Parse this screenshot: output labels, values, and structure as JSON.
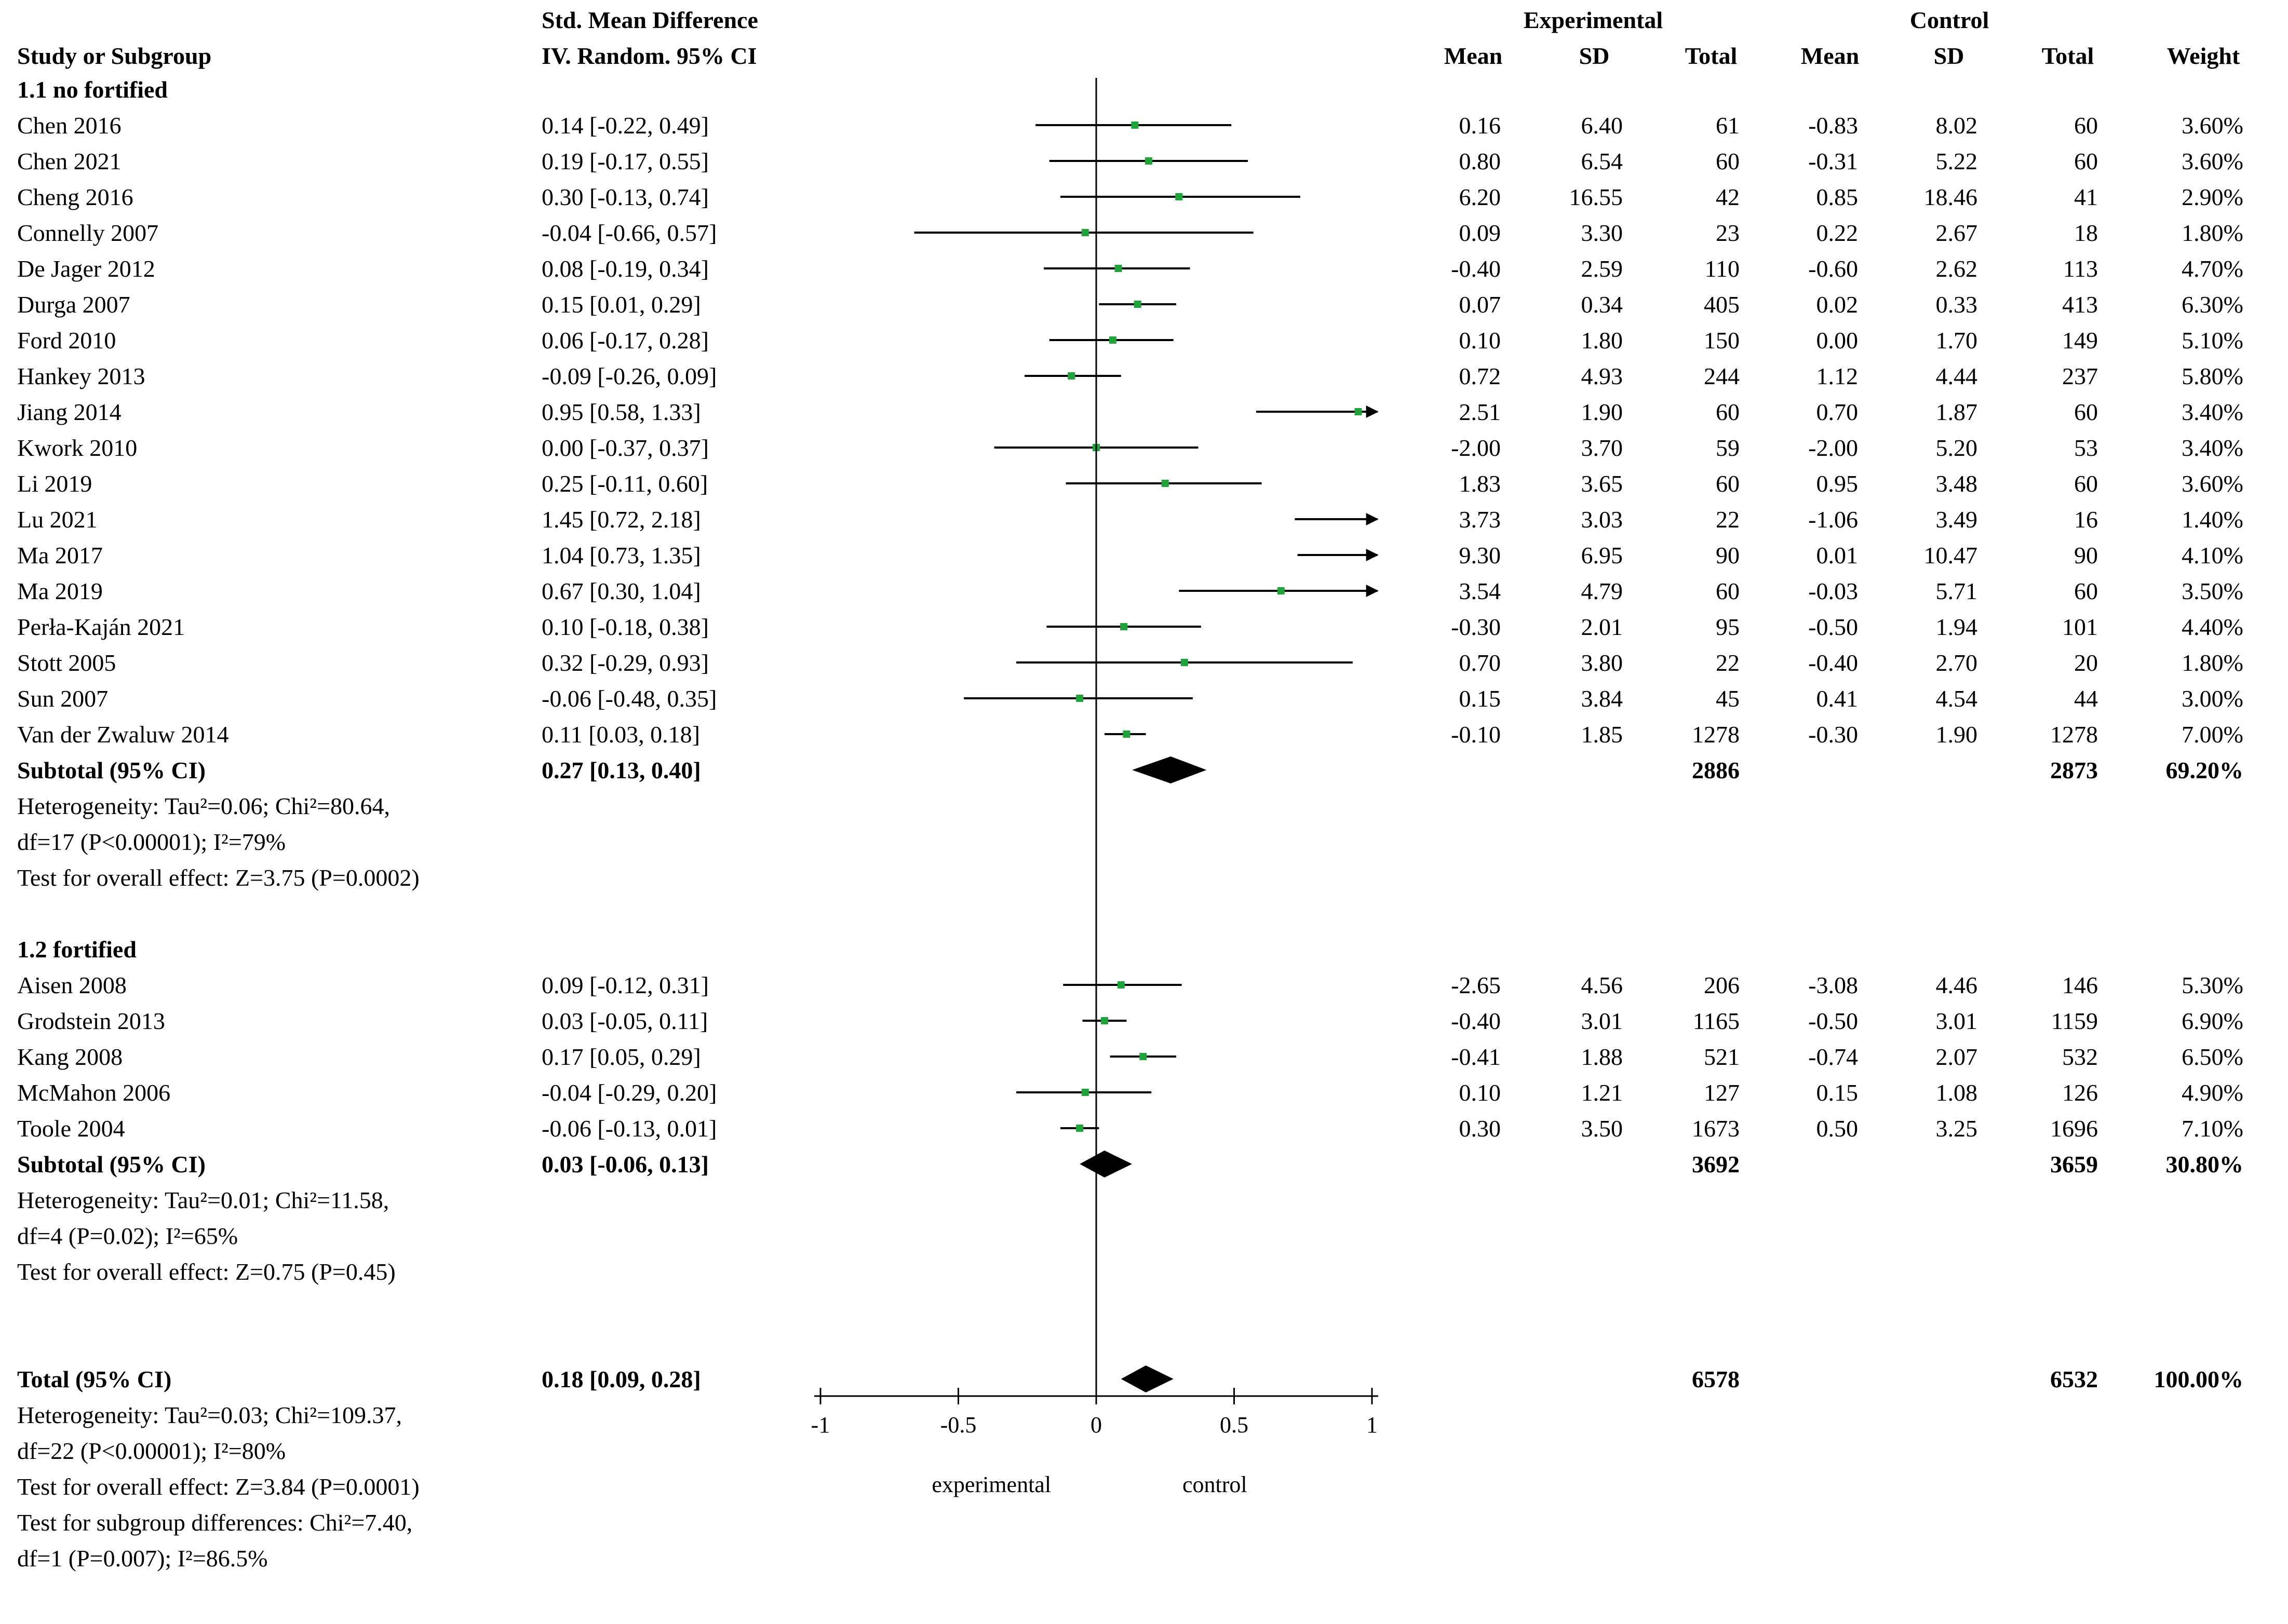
{
  "header": {
    "col_smd_line1": "Std. Mean Difference",
    "col_study": "Study or Subgroup",
    "col_smd_line2": "IV. Random. 95% CI",
    "experimental": "Experimental",
    "control": "Control",
    "mean": "Mean",
    "sd": "SD",
    "total": "Total",
    "weight": "Weight"
  },
  "groups": [
    {
      "title": "1.1 no fortified",
      "studies": [
        {
          "name": "Chen 2016",
          "ci": "0.14 [-0.22, 0.49]",
          "em": "0.16",
          "esd": "6.40",
          "et": "61",
          "cm": "-0.83",
          "csd": "8.02",
          "ct": "60",
          "w": "3.60%"
        },
        {
          "name": "Chen 2021",
          "ci": "0.19 [-0.17, 0.55]",
          "em": "0.80",
          "esd": "6.54",
          "et": "60",
          "cm": "-0.31",
          "csd": "5.22",
          "ct": "60",
          "w": "3.60%"
        },
        {
          "name": "Cheng 2016",
          "ci": "0.30 [-0.13, 0.74]",
          "em": "6.20",
          "esd": "16.55",
          "et": "42",
          "cm": "0.85",
          "csd": "18.46",
          "ct": "41",
          "w": "2.90%"
        },
        {
          "name": "Connelly 2007",
          "ci": "-0.04 [-0.66, 0.57]",
          "em": "0.09",
          "esd": "3.30",
          "et": "23",
          "cm": "0.22",
          "csd": "2.67",
          "ct": "18",
          "w": "1.80%"
        },
        {
          "name": "De Jager 2012",
          "ci": "0.08 [-0.19, 0.34]",
          "em": "-0.40",
          "esd": "2.59",
          "et": "110",
          "cm": "-0.60",
          "csd": "2.62",
          "ct": "113",
          "w": "4.70%"
        },
        {
          "name": "Durga 2007",
          "ci": "0.15 [0.01, 0.29]",
          "em": "0.07",
          "esd": "0.34",
          "et": "405",
          "cm": "0.02",
          "csd": "0.33",
          "ct": "413",
          "w": "6.30%"
        },
        {
          "name": "Ford 2010",
          "ci": "0.06 [-0.17, 0.28]",
          "em": "0.10",
          "esd": "1.80",
          "et": "150",
          "cm": "0.00",
          "csd": "1.70",
          "ct": "149",
          "w": "5.10%"
        },
        {
          "name": "Hankey 2013",
          "ci": "-0.09 [-0.26, 0.09]",
          "em": "0.72",
          "esd": "4.93",
          "et": "244",
          "cm": "1.12",
          "csd": "4.44",
          "ct": "237",
          "w": "5.80%"
        },
        {
          "name": "Jiang 2014",
          "ci": "0.95 [0.58, 1.33]",
          "em": "2.51",
          "esd": "1.90",
          "et": "60",
          "cm": "0.70",
          "csd": "1.87",
          "ct": "60",
          "w": "3.40%"
        },
        {
          "name": "Kwork 2010",
          "ci": "0.00 [-0.37, 0.37]",
          "em": "-2.00",
          "esd": "3.70",
          "et": "59",
          "cm": "-2.00",
          "csd": "5.20",
          "ct": "53",
          "w": "3.40%"
        },
        {
          "name": "Li 2019",
          "ci": "0.25 [-0.11, 0.60]",
          "em": "1.83",
          "esd": "3.65",
          "et": "60",
          "cm": "0.95",
          "csd": "3.48",
          "ct": "60",
          "w": "3.60%"
        },
        {
          "name": "Lu 2021",
          "ci": "1.45 [0.72, 2.18]",
          "em": "3.73",
          "esd": "3.03",
          "et": "22",
          "cm": "-1.06",
          "csd": "3.49",
          "ct": "16",
          "w": "1.40%"
        },
        {
          "name": "Ma 2017",
          "ci": "1.04 [0.73, 1.35]",
          "em": "9.30",
          "esd": "6.95",
          "et": "90",
          "cm": "0.01",
          "csd": "10.47",
          "ct": "90",
          "w": "4.10%"
        },
        {
          "name": "Ma 2019",
          "ci": "0.67 [0.30, 1.04]",
          "em": "3.54",
          "esd": "4.79",
          "et": "60",
          "cm": "-0.03",
          "csd": "5.71",
          "ct": "60",
          "w": "3.50%"
        },
        {
          "name": "Perła-Kaján 2021",
          "ci": "0.10 [-0.18, 0.38]",
          "em": "-0.30",
          "esd": "2.01",
          "et": "95",
          "cm": "-0.50",
          "csd": "1.94",
          "ct": "101",
          "w": "4.40%"
        },
        {
          "name": "Stott 2005",
          "ci": "0.32 [-0.29, 0.93]",
          "em": "0.70",
          "esd": "3.80",
          "et": "22",
          "cm": "-0.40",
          "csd": "2.70",
          "ct": "20",
          "w": "1.80%"
        },
        {
          "name": "Sun 2007",
          "ci": "-0.06 [-0.48, 0.35]",
          "em": "0.15",
          "esd": "3.84",
          "et": "45",
          "cm": "0.41",
          "csd": "4.54",
          "ct": "44",
          "w": "3.00%"
        },
        {
          "name": "Van der Zwaluw 2014",
          "ci": "0.11 [0.03, 0.18]",
          "em": "-0.10",
          "esd": "1.85",
          "et": "1278",
          "cm": "-0.30",
          "csd": "1.90",
          "ct": "1278",
          "w": "7.00%"
        }
      ],
      "subtotal": {
        "label": "Subtotal (95% CI)",
        "ci": "0.27 [0.13, 0.40]",
        "et": "2886",
        "ct": "2873",
        "w": "69.20%"
      },
      "heterogeneity_1": "Heterogeneity: Tau²=0.06; Chi²=80.64,",
      "heterogeneity_2": "df=17 (P<0.00001); I²=79%",
      "overall": "Test for overall effect: Z=3.75 (P=0.0002)"
    },
    {
      "title": "1.2 fortified",
      "studies": [
        {
          "name": "Aisen 2008",
          "ci": "0.09 [-0.12, 0.31]",
          "em": "-2.65",
          "esd": "4.56",
          "et": "206",
          "cm": "-3.08",
          "csd": "4.46",
          "ct": "146",
          "w": "5.30%"
        },
        {
          "name": "Grodstein 2013",
          "ci": "0.03 [-0.05, 0.11]",
          "em": "-0.40",
          "esd": "3.01",
          "et": "1165",
          "cm": "-0.50",
          "csd": "3.01",
          "ct": "1159",
          "w": "6.90%"
        },
        {
          "name": "Kang 2008",
          "ci": "0.17 [0.05, 0.29]",
          "em": "-0.41",
          "esd": "1.88",
          "et": "521",
          "cm": "-0.74",
          "csd": "2.07",
          "ct": "532",
          "w": "6.50%"
        },
        {
          "name": "McMahon 2006",
          "ci": "-0.04 [-0.29, 0.20]",
          "em": "0.10",
          "esd": "1.21",
          "et": "127",
          "cm": "0.15",
          "csd": "1.08",
          "ct": "126",
          "w": "4.90%"
        },
        {
          "name": "Toole 2004",
          "ci": "-0.06 [-0.13, 0.01]",
          "em": "0.30",
          "esd": "3.50",
          "et": "1673",
          "cm": "0.50",
          "csd": "3.25",
          "ct": "1696",
          "w": "7.10%"
        }
      ],
      "subtotal": {
        "label": "Subtotal (95% CI)",
        "ci": "0.03 [-0.06, 0.13]",
        "et": "3692",
        "ct": "3659",
        "w": "30.80%"
      },
      "heterogeneity_1": "Heterogeneity: Tau²=0.01; Chi²=11.58,",
      "heterogeneity_2": "df=4 (P=0.02); I²=65%",
      "overall": "Test for overall effect: Z=0.75 (P=0.45)"
    }
  ],
  "total": {
    "label": "Total (95% CI)",
    "ci": "0.18 [0.09, 0.28]",
    "et": "6578",
    "ct": "6532",
    "w": "100.00%"
  },
  "footer": {
    "heterogeneity_1": "Heterogeneity: Tau²=0.03; Chi²=109.37,",
    "heterogeneity_2": "df=22 (P<0.00001); I²=80%",
    "overall": "Test for overall effect: Z=3.84 (P=0.0001)",
    "subgroup_1": "Test for subgroup differences: Chi²=7.40,",
    "subgroup_2": "df=1 (P=0.007); I²=86.5%"
  },
  "colors": {
    "marker": "#1fa33a",
    "line": "#000000",
    "diamond": "#000000"
  },
  "chart_data": {
    "type": "forest",
    "title": "Std. Mean Difference IV. Random. 95% CI",
    "xlim": [
      -1,
      1
    ],
    "xticks": [
      -1,
      -0.5,
      0,
      0.5,
      1
    ],
    "xtick_labels": [
      "-1",
      "-0.5",
      "0",
      "0.5",
      "1"
    ],
    "favours_left": "experimental",
    "favours_right": "control",
    "series": [
      {
        "name": "1.1 no fortified",
        "studies": [
          {
            "name": "Chen 2016",
            "est": 0.14,
            "lo": -0.22,
            "hi": 0.49
          },
          {
            "name": "Chen 2021",
            "est": 0.19,
            "lo": -0.17,
            "hi": 0.55
          },
          {
            "name": "Cheng 2016",
            "est": 0.3,
            "lo": -0.13,
            "hi": 0.74
          },
          {
            "name": "Connelly 2007",
            "est": -0.04,
            "lo": -0.66,
            "hi": 0.57
          },
          {
            "name": "De Jager 2012",
            "est": 0.08,
            "lo": -0.19,
            "hi": 0.34
          },
          {
            "name": "Durga 2007",
            "est": 0.15,
            "lo": 0.01,
            "hi": 0.29
          },
          {
            "name": "Ford 2010",
            "est": 0.06,
            "lo": -0.17,
            "hi": 0.28
          },
          {
            "name": "Hankey 2013",
            "est": -0.09,
            "lo": -0.26,
            "hi": 0.09
          },
          {
            "name": "Jiang 2014",
            "est": 0.95,
            "lo": 0.58,
            "hi": 1.33
          },
          {
            "name": "Kwork 2010",
            "est": 0.0,
            "lo": -0.37,
            "hi": 0.37
          },
          {
            "name": "Li 2019",
            "est": 0.25,
            "lo": -0.11,
            "hi": 0.6
          },
          {
            "name": "Lu 2021",
            "est": 1.45,
            "lo": 0.72,
            "hi": 2.18
          },
          {
            "name": "Ma 2017",
            "est": 1.04,
            "lo": 0.73,
            "hi": 1.35
          },
          {
            "name": "Ma 2019",
            "est": 0.67,
            "lo": 0.3,
            "hi": 1.04
          },
          {
            "name": "Perła-Kaján 2021",
            "est": 0.1,
            "lo": -0.18,
            "hi": 0.38
          },
          {
            "name": "Stott 2005",
            "est": 0.32,
            "lo": -0.29,
            "hi": 0.93
          },
          {
            "name": "Sun 2007",
            "est": -0.06,
            "lo": -0.48,
            "hi": 0.35
          },
          {
            "name": "Van der Zwaluw 2014",
            "est": 0.11,
            "lo": 0.03,
            "hi": 0.18
          }
        ],
        "subtotal": {
          "est": 0.27,
          "lo": 0.13,
          "hi": 0.4
        }
      },
      {
        "name": "1.2 fortified",
        "studies": [
          {
            "name": "Aisen 2008",
            "est": 0.09,
            "lo": -0.12,
            "hi": 0.31
          },
          {
            "name": "Grodstein 2013",
            "est": 0.03,
            "lo": -0.05,
            "hi": 0.11
          },
          {
            "name": "Kang 2008",
            "est": 0.17,
            "lo": 0.05,
            "hi": 0.29
          },
          {
            "name": "McMahon 2006",
            "est": -0.04,
            "lo": -0.29,
            "hi": 0.2
          },
          {
            "name": "Toole 2004",
            "est": -0.06,
            "lo": -0.13,
            "hi": 0.01
          }
        ],
        "subtotal": {
          "est": 0.03,
          "lo": -0.06,
          "hi": 0.13
        }
      }
    ],
    "overall": {
      "est": 0.18,
      "lo": 0.09,
      "hi": 0.28
    }
  }
}
